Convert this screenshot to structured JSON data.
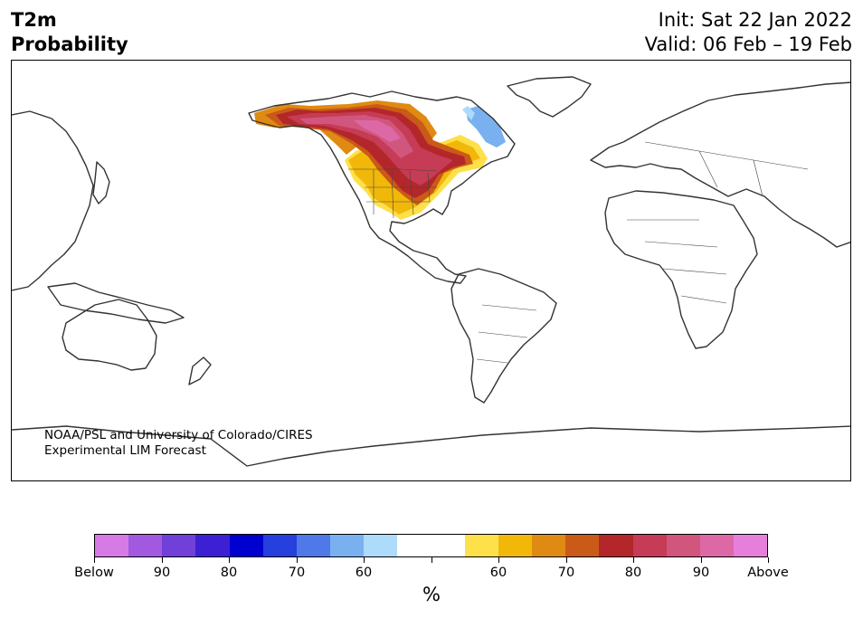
{
  "header": {
    "title_line1": "T2m",
    "title_line2": "Probability",
    "init": "Init: Sat 22 Jan 2022",
    "valid": "Valid: 06 Feb – 19 Feb"
  },
  "credit": {
    "line1": "NOAA/PSL and University of Colorado/CIRES",
    "line2": "Experimental LIM Forecast"
  },
  "colorbar": {
    "colors": [
      "#d67ae6",
      "#a259e0",
      "#7040d8",
      "#3d20d4",
      "#0000d0",
      "#2540dc",
      "#4f78e8",
      "#79b1f0",
      "#acdcfa",
      "#ffffff",
      "#ffffff",
      "#fde04a",
      "#f1b80a",
      "#df8a12",
      "#ca5a17",
      "#b3272a",
      "#c63b55",
      "#d1567d",
      "#dc68a6",
      "#e67fdb"
    ],
    "labels": [
      "Below",
      "90",
      "80",
      "70",
      "60",
      "",
      "60",
      "70",
      "80",
      "90",
      "Above"
    ],
    "unit": "%"
  },
  "map": {
    "projection": "PlateCarree, centered on 180°",
    "field": "T2m probability",
    "regions": [
      {
        "name": "Alaska / NW Canada / western & central US",
        "category": "above",
        "level": "70-90"
      },
      {
        "name": "Eastern US / Great Lakes",
        "category": "above",
        "level": "80-90"
      },
      {
        "name": "Southwestern US / Mexico border",
        "category": "above",
        "level": "55-70"
      },
      {
        "name": "Labrador / northern Quebec",
        "category": "below",
        "level": "60-70"
      }
    ]
  }
}
